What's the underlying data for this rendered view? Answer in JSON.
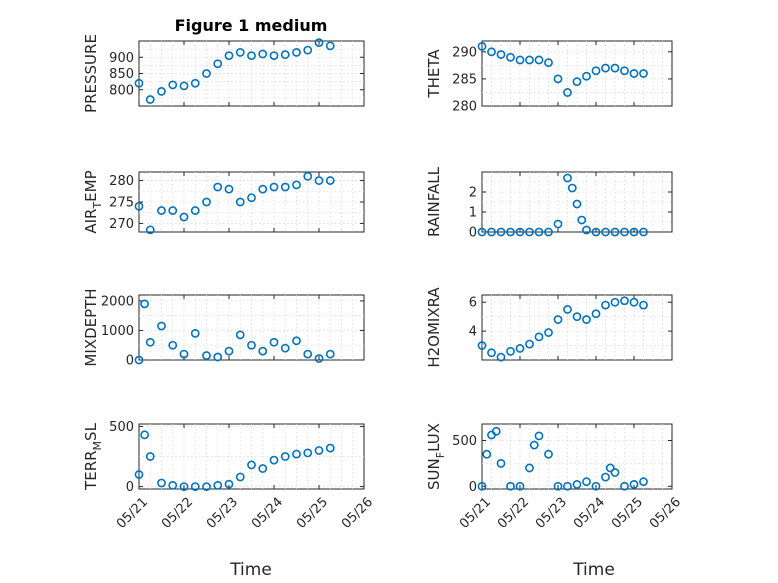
{
  "title": "Figure 1 medium",
  "xlabel": "Time",
  "colors": {
    "marker": "#0072bd",
    "axis": "#262626",
    "grid": "#d9d9d9"
  },
  "chart_data": [
    {
      "type": "scatter",
      "ylabel": "PRESSURE",
      "x": [
        "05/21",
        "05/21 06:00",
        "05/21 12:00",
        "05/21 18:00",
        "05/22",
        "05/22 06:00",
        "05/22 12:00",
        "05/22 18:00",
        "05/23",
        "05/23 06:00",
        "05/23 12:00",
        "05/23 18:00",
        "05/24",
        "05/24 06:00",
        "05/24 12:00",
        "05/24 18:00",
        "05/25",
        "05/25 06:00"
      ],
      "y": [
        820,
        770,
        795,
        815,
        812,
        820,
        850,
        880,
        905,
        915,
        905,
        910,
        905,
        908,
        915,
        922,
        945,
        935
      ],
      "ylim": [
        750,
        950
      ],
      "yticks": [
        800,
        850,
        900
      ],
      "xlim": [
        "05/21",
        "05/26"
      ],
      "xticks": [
        "05/21",
        "05/22",
        "05/23",
        "05/24",
        "05/25",
        "05/26"
      ],
      "grid": true
    },
    {
      "type": "scatter",
      "ylabel": "THETA",
      "x": [
        "05/21",
        "05/21 06:00",
        "05/21 12:00",
        "05/21 18:00",
        "05/22",
        "05/22 06:00",
        "05/22 12:00",
        "05/22 18:00",
        "05/23",
        "05/23 06:00",
        "05/23 12:00",
        "05/23 18:00",
        "05/24",
        "05/24 06:00",
        "05/24 12:00",
        "05/24 18:00",
        "05/25",
        "05/25 06:00"
      ],
      "y": [
        291,
        290,
        289.5,
        289,
        288.5,
        288.5,
        288.5,
        288,
        285,
        282.5,
        284.5,
        285.5,
        286.5,
        287,
        287,
        286.5,
        286,
        286
      ],
      "ylim": [
        280,
        292
      ],
      "yticks": [
        280,
        285,
        290
      ],
      "xlim": [
        "05/21",
        "05/26"
      ],
      "xticks": [
        "05/21",
        "05/22",
        "05/23",
        "05/24",
        "05/25",
        "05/26"
      ],
      "grid": true
    },
    {
      "type": "scatter",
      "ylabel": "AIR_TEMP",
      "x": [
        "05/21",
        "05/21 06:00",
        "05/21 12:00",
        "05/21 18:00",
        "05/22",
        "05/22 06:00",
        "05/22 12:00",
        "05/22 18:00",
        "05/23",
        "05/23 06:00",
        "05/23 12:00",
        "05/23 18:00",
        "05/24",
        "05/24 06:00",
        "05/24 12:00",
        "05/24 18:00",
        "05/25",
        "05/25 06:00"
      ],
      "y": [
        274,
        268.5,
        273,
        273,
        271.5,
        273,
        275,
        278.5,
        278,
        275,
        276,
        278,
        278.5,
        278.5,
        279,
        281,
        280,
        280
      ],
      "ylim": [
        268,
        282
      ],
      "yticks": [
        270,
        275,
        280
      ],
      "xlim": [
        "05/21",
        "05/26"
      ],
      "xticks": [
        "05/21",
        "05/22",
        "05/23",
        "05/24",
        "05/25",
        "05/26"
      ],
      "grid": true
    },
    {
      "type": "scatter",
      "ylabel": "RAINFALL",
      "x": [
        "05/21",
        "05/21 06:00",
        "05/21 12:00",
        "05/21 18:00",
        "05/22",
        "05/22 06:00",
        "05/22 12:00",
        "05/22 18:00",
        "05/23",
        "05/23 06:00",
        "05/23 09:00",
        "05/23 12:00",
        "05/23 15:00",
        "05/23 18:00",
        "05/24",
        "05/24 06:00",
        "05/24 12:00",
        "05/24 18:00",
        "05/25",
        "05/25 06:00"
      ],
      "y": [
        0,
        0,
        0,
        0,
        0,
        0,
        0,
        0,
        0.4,
        2.7,
        2.2,
        1.4,
        0.6,
        0.1,
        0,
        0,
        0,
        0,
        0,
        0
      ],
      "ylim": [
        0,
        3
      ],
      "yticks": [
        0,
        1,
        2
      ],
      "xlim": [
        "05/21",
        "05/26"
      ],
      "xticks": [
        "05/21",
        "05/22",
        "05/23",
        "05/24",
        "05/25",
        "05/26"
      ],
      "grid": true
    },
    {
      "type": "scatter",
      "ylabel": "MIXDEPTH",
      "x": [
        "05/21",
        "05/21 03:00",
        "05/21 06:00",
        "05/21 12:00",
        "05/21 18:00",
        "05/22",
        "05/22 06:00",
        "05/22 12:00",
        "05/22 18:00",
        "05/23",
        "05/23 06:00",
        "05/23 12:00",
        "05/23 18:00",
        "05/24",
        "05/24 06:00",
        "05/24 12:00",
        "05/24 18:00",
        "05/25",
        "05/25 06:00"
      ],
      "y": [
        0,
        1900,
        600,
        1150,
        500,
        200,
        900,
        150,
        100,
        300,
        850,
        500,
        300,
        600,
        400,
        650,
        200,
        50,
        200
      ],
      "ylim": [
        0,
        2200
      ],
      "yticks": [
        0,
        1000,
        2000
      ],
      "xlim": [
        "05/21",
        "05/26"
      ],
      "xticks": [
        "05/21",
        "05/22",
        "05/23",
        "05/24",
        "05/25",
        "05/26"
      ],
      "grid": true
    },
    {
      "type": "scatter",
      "ylabel": "H2OMIXRA",
      "x": [
        "05/21",
        "05/21 06:00",
        "05/21 12:00",
        "05/21 18:00",
        "05/22",
        "05/22 06:00",
        "05/22 12:00",
        "05/22 18:00",
        "05/23",
        "05/23 06:00",
        "05/23 12:00",
        "05/23 18:00",
        "05/24",
        "05/24 06:00",
        "05/24 12:00",
        "05/24 18:00",
        "05/25",
        "05/25 06:00"
      ],
      "y": [
        3,
        2.5,
        2.2,
        2.6,
        2.8,
        3.1,
        3.6,
        3.9,
        4.8,
        5.5,
        5.0,
        4.8,
        5.2,
        5.8,
        6.0,
        6.1,
        6.0,
        5.8
      ],
      "ylim": [
        2,
        6.5
      ],
      "yticks": [
        4,
        6
      ],
      "xlim": [
        "05/21",
        "05/26"
      ],
      "xticks": [
        "05/21",
        "05/22",
        "05/23",
        "05/24",
        "05/25",
        "05/26"
      ],
      "grid": true
    },
    {
      "type": "scatter",
      "ylabel": "TERR_MSL",
      "x": [
        "05/21",
        "05/21 03:00",
        "05/21 06:00",
        "05/21 12:00",
        "05/21 18:00",
        "05/22",
        "05/22 06:00",
        "05/22 12:00",
        "05/22 18:00",
        "05/23",
        "05/23 06:00",
        "05/23 12:00",
        "05/23 18:00",
        "05/24",
        "05/24 06:00",
        "05/24 12:00",
        "05/24 18:00",
        "05/25",
        "05/25 06:00"
      ],
      "y": [
        100,
        430,
        250,
        30,
        10,
        0,
        0,
        0,
        10,
        20,
        80,
        180,
        150,
        220,
        250,
        270,
        280,
        300,
        320
      ],
      "ylim": [
        -20,
        520
      ],
      "yticks": [
        0,
        500
      ],
      "xlim": [
        "05/21",
        "05/26"
      ],
      "xticks": [
        "05/21",
        "05/22",
        "05/23",
        "05/24",
        "05/25",
        "05/26"
      ],
      "grid": true
    },
    {
      "type": "scatter",
      "ylabel": "SUN_FLUX",
      "x": [
        "05/21",
        "05/21 03:00",
        "05/21 06:00",
        "05/21 09:00",
        "05/21 12:00",
        "05/21 18:00",
        "05/22",
        "05/22 06:00",
        "05/22 09:00",
        "05/22 12:00",
        "05/22 18:00",
        "05/23",
        "05/23 06:00",
        "05/23 12:00",
        "05/23 18:00",
        "05/24",
        "05/24 06:00",
        "05/24 09:00",
        "05/24 12:00",
        "05/24 18:00",
        "05/25",
        "05/25 06:00"
      ],
      "y": [
        0,
        350,
        560,
        600,
        250,
        0,
        0,
        200,
        450,
        550,
        350,
        0,
        0,
        20,
        50,
        0,
        100,
        200,
        150,
        0,
        20,
        50
      ],
      "ylim": [
        -30,
        680
      ],
      "yticks": [
        0,
        500
      ],
      "xlim": [
        "05/21",
        "05/26"
      ],
      "xticks": [
        "05/21",
        "05/22",
        "05/23",
        "05/24",
        "05/25",
        "05/26"
      ],
      "grid": true
    }
  ]
}
